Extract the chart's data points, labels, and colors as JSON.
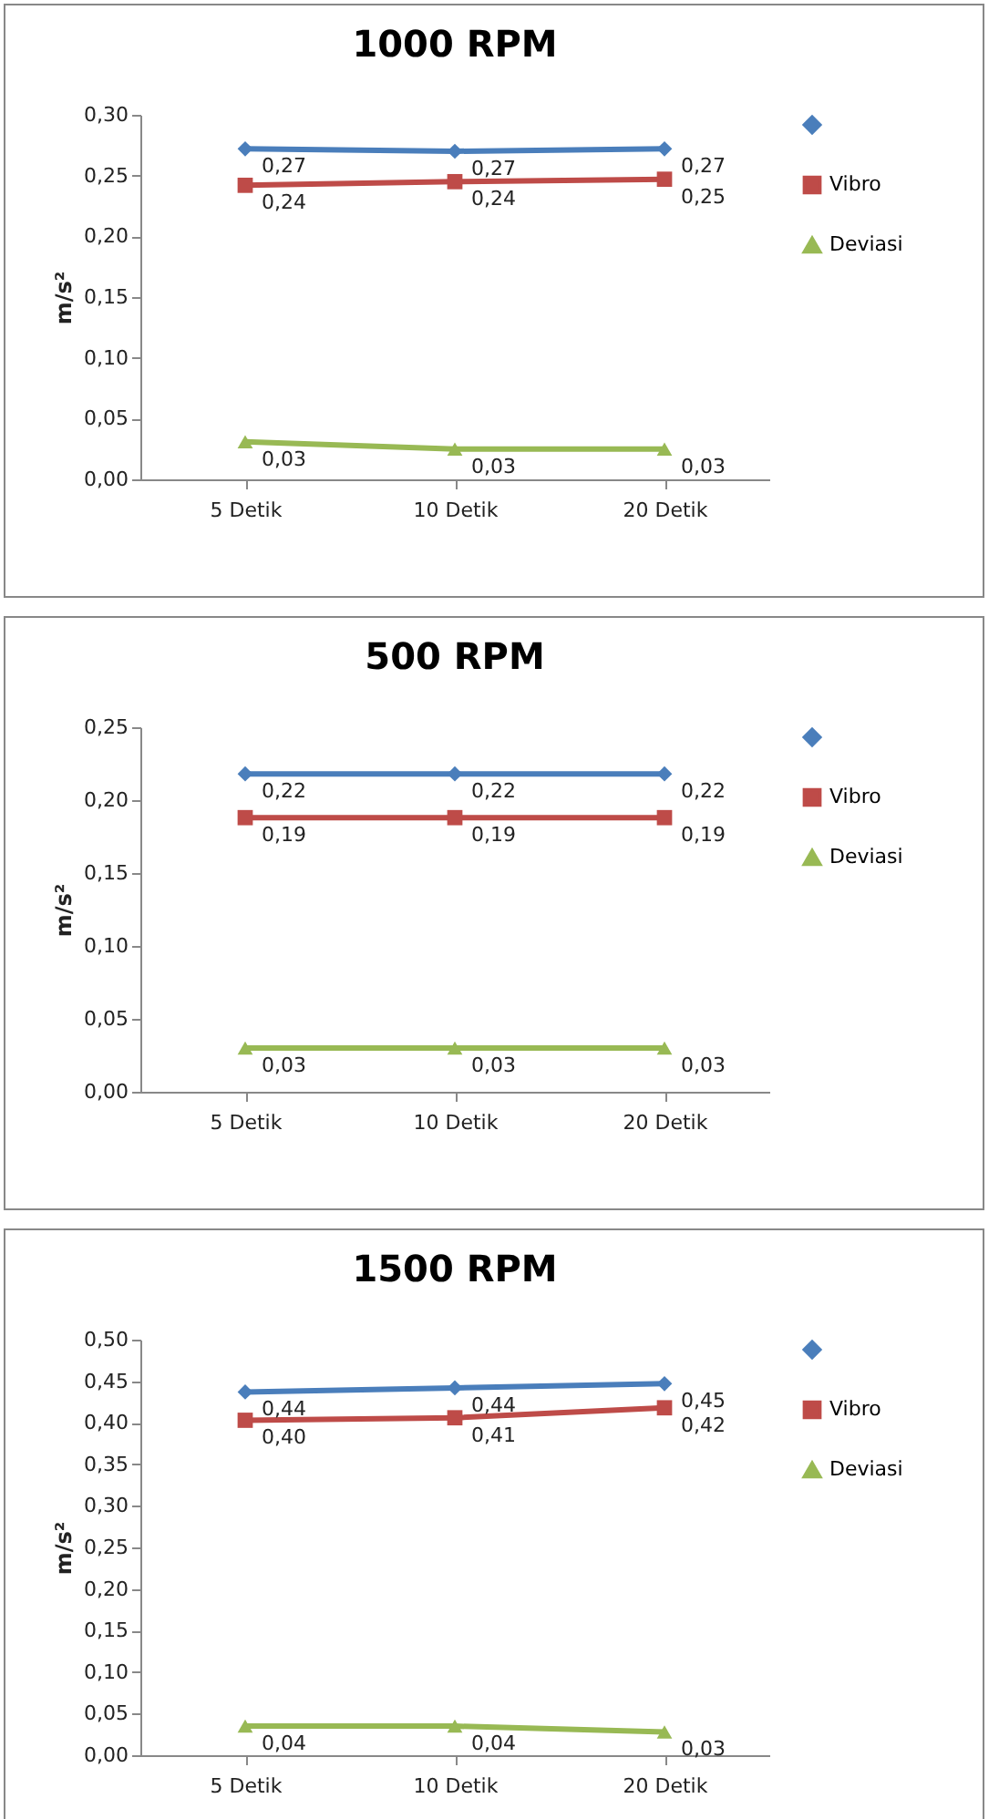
{
  "chart_data": [
    {
      "type": "line",
      "title": "1000 RPM",
      "ylabel": "m/s²",
      "categories": [
        "5 Detik",
        "10 Detik",
        "20 Detik"
      ],
      "ylim": [
        0,
        0.3
      ],
      "yticks": [
        {
          "value": 0,
          "label": "0,00"
        },
        {
          "value": 0.05,
          "label": "0,05"
        },
        {
          "value": 0.1,
          "label": "0,10"
        },
        {
          "value": 0.15,
          "label": "0,15"
        },
        {
          "value": 0.2,
          "label": "0,20"
        },
        {
          "value": 0.25,
          "label": "0,25"
        },
        {
          "value": 0.3,
          "label": "0,30"
        }
      ],
      "legend": "right",
      "series": [
        {
          "color": "#4a7ebb",
          "marker": "diamond",
          "values": [
            0.272,
            0.27,
            0.272
          ],
          "value_labels": [
            "0,27",
            "0,27",
            "0,27"
          ]
        },
        {
          "name": "Vibro",
          "color": "#be4b48",
          "marker": "square",
          "values": [
            0.242,
            0.245,
            0.247
          ],
          "value_labels": [
            "0,24",
            "0,24",
            "0,25"
          ]
        },
        {
          "name": "Deviasi",
          "color": "#98b954",
          "marker": "triangle",
          "values": [
            0.031,
            0.025,
            0.025
          ],
          "value_labels": [
            "0,03",
            "0,03",
            "0,03"
          ]
        }
      ]
    },
    {
      "type": "line",
      "title": "500 RPM",
      "ylabel": "m/s²",
      "categories": [
        "5 Detik",
        "10 Detik",
        "20 Detik"
      ],
      "ylim": [
        0,
        0.25
      ],
      "yticks": [
        {
          "value": 0,
          "label": "0,00"
        },
        {
          "value": 0.05,
          "label": "0,05"
        },
        {
          "value": 0.1,
          "label": "0,10"
        },
        {
          "value": 0.15,
          "label": "0,15"
        },
        {
          "value": 0.2,
          "label": "0,20"
        },
        {
          "value": 0.25,
          "label": "0,25"
        }
      ],
      "legend": "right",
      "series": [
        {
          "color": "#4a7ebb",
          "marker": "diamond",
          "values": [
            0.218,
            0.218,
            0.218
          ],
          "value_labels": [
            "0,22",
            "0,22",
            "0,22"
          ]
        },
        {
          "name": "Vibro",
          "color": "#be4b48",
          "marker": "square",
          "values": [
            0.188,
            0.188,
            0.188
          ],
          "value_labels": [
            "0,19",
            "0,19",
            "0,19"
          ]
        },
        {
          "name": "Deviasi",
          "color": "#98b954",
          "marker": "triangle",
          "values": [
            0.03,
            0.03,
            0.03
          ],
          "value_labels": [
            "0,03",
            "0,03",
            "0,03"
          ]
        }
      ]
    },
    {
      "type": "line",
      "title": "1500 RPM",
      "ylabel": "m/s²",
      "categories": [
        "5 Detik",
        "10 Detik",
        "20 Detik"
      ],
      "ylim": [
        0,
        0.5
      ],
      "yticks": [
        {
          "value": 0,
          "label": "0,00"
        },
        {
          "value": 0.05,
          "label": "0,05"
        },
        {
          "value": 0.1,
          "label": "0,10"
        },
        {
          "value": 0.15,
          "label": "0,15"
        },
        {
          "value": 0.2,
          "label": "0,20"
        },
        {
          "value": 0.25,
          "label": "0,25"
        },
        {
          "value": 0.3,
          "label": "0,30"
        },
        {
          "value": 0.35,
          "label": "0,35"
        },
        {
          "value": 0.4,
          "label": "0,40"
        },
        {
          "value": 0.45,
          "label": "0,45"
        },
        {
          "value": 0.5,
          "label": "0,50"
        }
      ],
      "legend": "right",
      "series": [
        {
          "color": "#4a7ebb",
          "marker": "diamond",
          "values": [
            0.437,
            0.442,
            0.447
          ],
          "value_labels": [
            "0,44",
            "0,44",
            "0,45"
          ]
        },
        {
          "name": "Vibro",
          "color": "#be4b48",
          "marker": "square",
          "values": [
            0.403,
            0.406,
            0.418
          ],
          "value_labels": [
            "0,40",
            "0,41",
            "0,42"
          ]
        },
        {
          "name": "Deviasi",
          "color": "#98b954",
          "marker": "triangle",
          "values": [
            0.035,
            0.035,
            0.028
          ],
          "value_labels": [
            "0,04",
            "0,04",
            "0,03"
          ]
        }
      ]
    }
  ]
}
